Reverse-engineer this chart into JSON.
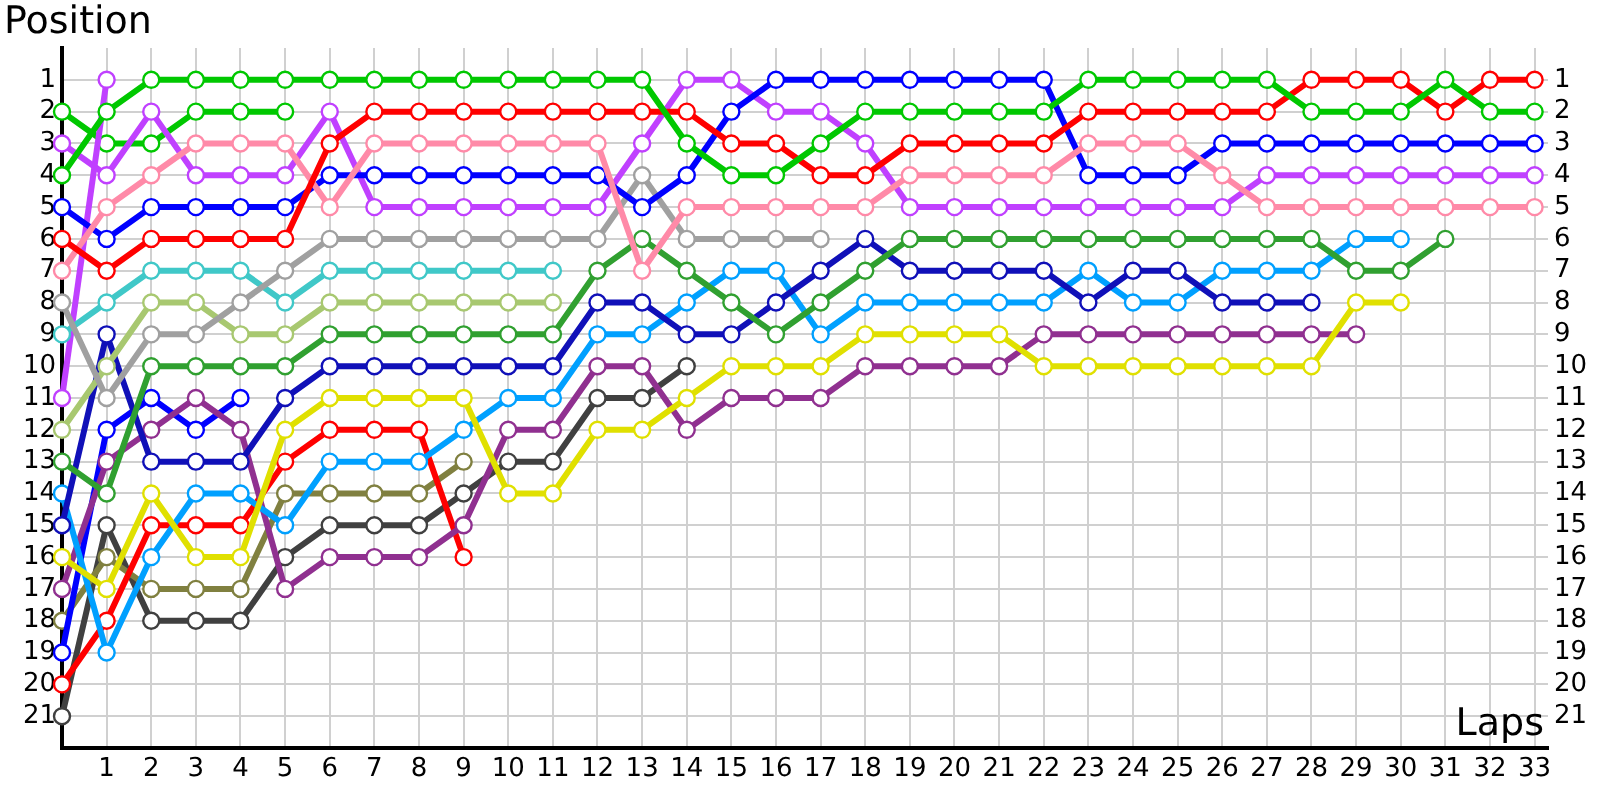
{
  "chart_data": {
    "type": "line",
    "xlabel": "Laps",
    "ylabel": "Position",
    "x": [
      0,
      1,
      2,
      3,
      4,
      5,
      6,
      7,
      8,
      9,
      10,
      11,
      12,
      13,
      14,
      15,
      16,
      17,
      18,
      19,
      20,
      21,
      22,
      23,
      24,
      25,
      26,
      27,
      28,
      29,
      30,
      31,
      32,
      33
    ],
    "xlim": [
      0,
      33.3
    ],
    "xticks": [
      1,
      2,
      3,
      4,
      5,
      6,
      7,
      8,
      9,
      10,
      11,
      12,
      13,
      14,
      15,
      16,
      17,
      18,
      19,
      20,
      21,
      22,
      23,
      24,
      25,
      26,
      27,
      28,
      29,
      30,
      31,
      32,
      33
    ],
    "ylim": [
      22,
      0
    ],
    "yticks": [
      1,
      2,
      3,
      4,
      5,
      6,
      7,
      8,
      9,
      10,
      11,
      12,
      13,
      14,
      15,
      16,
      17,
      18,
      19,
      20,
      21
    ],
    "y2lim": [
      22,
      0
    ],
    "y2ticks": [
      1,
      2,
      3,
      4,
      5,
      6,
      7,
      8,
      9,
      10,
      11,
      12,
      13,
      14,
      15,
      16,
      17,
      18,
      19,
      20,
      21
    ],
    "grid": true,
    "legend": false,
    "marker": "circle",
    "line_style": "solid",
    "series": [
      {
        "color": "#00c800",
        "values": [
          4,
          2,
          1,
          1,
          1,
          1,
          1,
          1,
          1,
          1,
          1,
          1,
          1,
          1,
          3,
          4,
          4,
          3,
          2,
          2,
          2,
          2,
          2,
          1,
          1,
          1,
          1,
          1,
          2,
          2,
          2,
          1,
          2,
          2
        ]
      },
      {
        "color": "#ff0000",
        "values": [
          6,
          7,
          6,
          6,
          6,
          6,
          3,
          2,
          2,
          2,
          2,
          2,
          2,
          2,
          2,
          3,
          3,
          4,
          4,
          3,
          3,
          3,
          3,
          2,
          2,
          2,
          2,
          2,
          1,
          1,
          1,
          2,
          1,
          1
        ]
      },
      {
        "color": "#ff8aa8",
        "values": [
          7,
          5,
          4,
          3,
          3,
          3,
          5,
          3,
          3,
          3,
          3,
          3,
          3,
          7,
          5,
          5,
          5,
          5,
          5,
          4,
          4,
          4,
          4,
          3,
          3,
          3,
          4,
          5,
          5,
          5,
          5,
          5,
          5,
          5
        ]
      },
      {
        "color": "#0000ff",
        "values": [
          5,
          6,
          5,
          5,
          5,
          5,
          4,
          4,
          4,
          4,
          4,
          4,
          4,
          5,
          4,
          2,
          1,
          1,
          1,
          1,
          1,
          1,
          1,
          4,
          4,
          4,
          3,
          3,
          3,
          3,
          3,
          3,
          3,
          3
        ]
      },
      {
        "color": "#c040ff",
        "values": [
          3,
          4,
          2,
          4,
          4,
          4,
          2,
          5,
          5,
          5,
          5,
          5,
          5,
          3,
          1,
          1,
          2,
          2,
          3,
          5,
          5,
          5,
          5,
          5,
          5,
          5,
          5,
          4,
          4,
          4,
          4,
          4,
          4,
          4
        ]
      },
      {
        "color": "#a0a0a0",
        "values": [
          8,
          11,
          9,
          9,
          8,
          7,
          6,
          6,
          6,
          6,
          6,
          6,
          6,
          4,
          6,
          6,
          6,
          6,
          null,
          null,
          null,
          null,
          null,
          null,
          null,
          null,
          null,
          null,
          null,
          null,
          null,
          null,
          null,
          null
        ]
      },
      {
        "color": "#40c8c8",
        "values": [
          9,
          8,
          7,
          7,
          7,
          8,
          7,
          7,
          7,
          7,
          7,
          7,
          null,
          null,
          null,
          null,
          null,
          null,
          null,
          null,
          null,
          null,
          null,
          null,
          null,
          null,
          null,
          null,
          null,
          null,
          null,
          null,
          null,
          null
        ]
      },
      {
        "color": "#a8c870",
        "values": [
          12,
          10,
          8,
          8,
          9,
          9,
          8,
          8,
          8,
          8,
          8,
          8,
          null,
          null,
          null,
          null,
          null,
          null,
          null,
          null,
          null,
          null,
          null,
          null,
          null,
          null,
          null,
          null,
          null,
          null,
          null,
          null,
          null,
          null
        ]
      },
      {
        "color": "#30a030",
        "values": [
          13,
          14,
          10,
          10,
          10,
          10,
          9,
          9,
          9,
          9,
          9,
          9,
          7,
          6,
          7,
          8,
          9,
          8,
          7,
          6,
          6,
          6,
          6,
          6,
          6,
          6,
          6,
          6,
          6,
          7,
          7,
          6,
          null,
          null
        ]
      },
      {
        "color": "#1010b8",
        "values": [
          15,
          9,
          13,
          13,
          13,
          11,
          10,
          10,
          10,
          10,
          10,
          10,
          8,
          8,
          9,
          9,
          8,
          7,
          6,
          7,
          7,
          7,
          7,
          8,
          7,
          7,
          8,
          8,
          8,
          null,
          null,
          null,
          null,
          null
        ]
      },
      {
        "color": "#e0e000",
        "values": [
          16,
          17,
          14,
          16,
          16,
          12,
          11,
          11,
          11,
          11,
          14,
          14,
          12,
          12,
          11,
          10,
          10,
          10,
          9,
          9,
          9,
          9,
          10,
          10,
          10,
          10,
          10,
          10,
          10,
          8,
          8,
          null,
          null,
          null
        ]
      },
      {
        "color": "#00a0ff",
        "values": [
          14,
          19,
          16,
          14,
          14,
          15,
          13,
          13,
          13,
          12,
          11,
          11,
          9,
          9,
          8,
          7,
          7,
          9,
          8,
          8,
          8,
          8,
          8,
          7,
          8,
          8,
          7,
          7,
          7,
          6,
          6,
          null,
          null,
          null
        ]
      },
      {
        "color": "#903090",
        "values": [
          17,
          13,
          12,
          11,
          12,
          17,
          16,
          16,
          16,
          15,
          12,
          12,
          10,
          10,
          12,
          11,
          11,
          11,
          10,
          10,
          10,
          10,
          9,
          9,
          9,
          9,
          9,
          9,
          9,
          9,
          null,
          null,
          null,
          null
        ]
      },
      {
        "color": "#c040ff",
        "values": [
          11,
          1,
          null,
          null,
          null,
          null,
          null,
          null,
          null,
          null,
          null,
          null,
          null,
          null,
          null,
          null,
          null,
          null,
          null,
          null,
          null,
          null,
          null,
          null,
          null,
          null,
          null,
          null,
          null,
          null,
          null,
          null,
          null,
          null
        ]
      },
      {
        "color": "#00c800",
        "values": [
          2,
          3,
          3,
          2,
          2,
          2,
          null,
          null,
          null,
          null,
          null,
          null,
          null,
          null,
          null,
          null,
          null,
          null,
          null,
          null,
          null,
          null,
          null,
          null,
          null,
          null,
          null,
          null,
          null,
          null,
          null,
          null,
          null,
          null
        ]
      },
      {
        "color": "#0000ff",
        "values": [
          19,
          12,
          11,
          12,
          11,
          null,
          null,
          null,
          null,
          null,
          null,
          null,
          null,
          null,
          null,
          null,
          null,
          null,
          null,
          null,
          null,
          null,
          null,
          null,
          null,
          null,
          null,
          null,
          null,
          null,
          null,
          null,
          null,
          null
        ]
      },
      {
        "color": "#ff0000",
        "values": [
          20,
          18,
          15,
          15,
          15,
          13,
          12,
          12,
          12,
          16,
          null,
          null,
          null,
          null,
          null,
          null,
          null,
          null,
          null,
          null,
          null,
          null,
          null,
          null,
          null,
          null,
          null,
          null,
          null,
          null,
          null,
          null,
          null,
          null
        ]
      },
      {
        "color": "#808040",
        "values": [
          18,
          16,
          17,
          17,
          17,
          14,
          14,
          14,
          14,
          13,
          null,
          null,
          null,
          null,
          null,
          null,
          null,
          null,
          null,
          null,
          null,
          null,
          null,
          null,
          null,
          null,
          null,
          null,
          null,
          null,
          null,
          null,
          null,
          null
        ]
      },
      {
        "color": "#404040",
        "values": [
          21,
          15,
          18,
          18,
          18,
          16,
          15,
          15,
          15,
          14,
          13,
          13,
          11,
          11,
          10,
          null,
          null,
          null,
          null,
          null,
          null,
          null,
          null,
          null,
          null,
          null,
          null,
          null,
          null,
          null,
          null,
          null,
          null,
          null
        ]
      }
    ]
  }
}
